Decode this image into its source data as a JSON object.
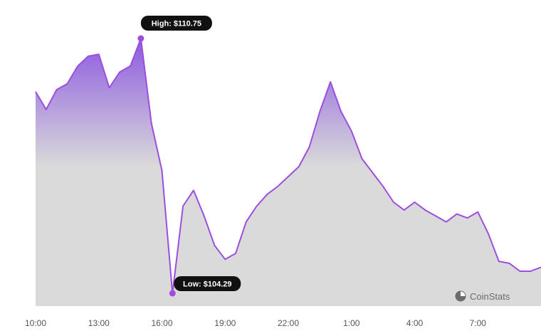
{
  "chart_data": {
    "type": "area",
    "x_tick_labels": [
      "10:00",
      "13:00",
      "16:00",
      "19:00",
      "22:00",
      "1:00",
      "4:00",
      "7:00"
    ],
    "x_tick_hours": [
      0,
      3,
      6,
      9,
      12,
      15,
      18,
      21
    ],
    "x_range_hours": [
      0,
      24
    ],
    "y_range": [
      104.29,
      110.75
    ],
    "x_hours": [
      0,
      0.5,
      1,
      1.5,
      2,
      2.5,
      3,
      3.5,
      4,
      4.5,
      5,
      5.5,
      6,
      6.5,
      7,
      7.5,
      8,
      8.5,
      9,
      9.5,
      10,
      10.5,
      11,
      11.5,
      12,
      12.5,
      13,
      13.5,
      14,
      14.5,
      15,
      15.5,
      16,
      16.5,
      17,
      17.5,
      18,
      18.5,
      19,
      19.5,
      20,
      20.5,
      21,
      21.5,
      22,
      22.5,
      23,
      23.5,
      24
    ],
    "values": [
      109.4,
      108.95,
      109.45,
      109.6,
      110.05,
      110.3,
      110.35,
      109.5,
      109.9,
      110.05,
      110.75,
      108.6,
      107.4,
      104.29,
      106.5,
      106.9,
      106.25,
      105.5,
      105.15,
      105.3,
      106.1,
      106.5,
      106.8,
      107.0,
      107.25,
      107.5,
      108.0,
      108.9,
      109.65,
      108.9,
      108.4,
      107.7,
      107.35,
      107.0,
      106.6,
      106.4,
      106.6,
      106.4,
      106.25,
      106.1,
      106.3,
      106.2,
      106.35,
      105.8,
      105.1,
      105.05,
      104.85,
      104.85,
      104.95
    ],
    "high": {
      "label": "High: $110.75",
      "value": 110.75,
      "x_hour": 5
    },
    "low": {
      "label": "Low: $104.29",
      "value": 104.29,
      "x_hour": 6.5
    },
    "line_color": "#9d4edd",
    "fill_top_color": "#8c5ae0",
    "fill_bottom_color": "#dadada",
    "grid": false,
    "legend": "none"
  },
  "brand": {
    "name": "CoinStats",
    "icon": "coinstats-logo-icon"
  }
}
